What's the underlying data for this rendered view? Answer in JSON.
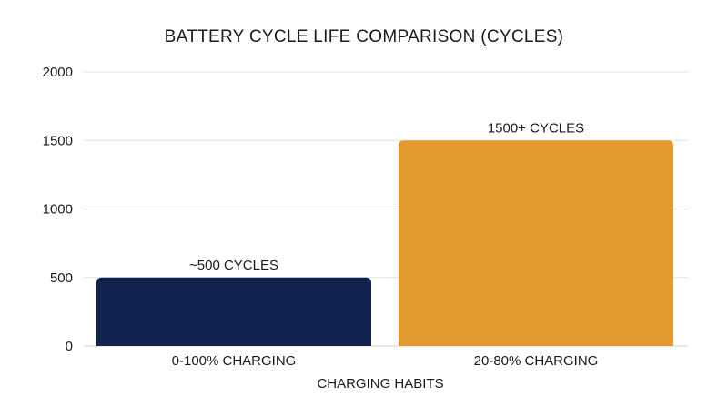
{
  "chart_data": {
    "type": "bar",
    "title": "BATTERY CYCLE LIFE COMPARISON (CYCLES)",
    "xlabel": "CHARGING HABITS",
    "ylabel": "",
    "categories": [
      "0-100% CHARGING",
      "20-80% CHARGING"
    ],
    "values": [
      500,
      1500
    ],
    "data_labels": [
      "~500 CYCLES",
      "1500+ CYCLES"
    ],
    "ylim": [
      0,
      2000
    ],
    "yticks": [
      0,
      500,
      1000,
      1500,
      2000
    ],
    "ytick_labels": [
      "0",
      "500",
      "1000",
      "1500",
      "2000"
    ],
    "bar_colors": [
      "#13234f",
      "#e29a2f"
    ],
    "grid": true,
    "legend": "none"
  }
}
